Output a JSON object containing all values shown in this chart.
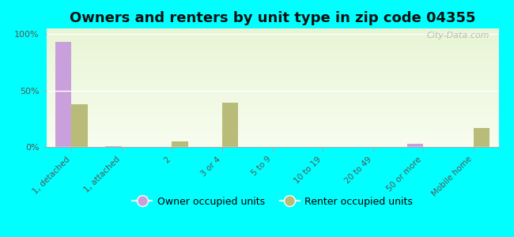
{
  "title": "Owners and renters by unit type in zip code 04355",
  "categories": [
    "1, detached",
    "1, attached",
    "2",
    "3 or 4",
    "5 to 9",
    "10 to 19",
    "20 to 49",
    "50 or more",
    "Mobile home"
  ],
  "owner_values": [
    93,
    1,
    0,
    0,
    0,
    0,
    0,
    3,
    0
  ],
  "renter_values": [
    38,
    0,
    5,
    39,
    0,
    0,
    0,
    0,
    17
  ],
  "owner_color": "#c9a0dc",
  "renter_color": "#b8bc78",
  "background_color": "#00ffff",
  "title_fontsize": 13,
  "ylabel_ticks": [
    "0%",
    "50%",
    "100%"
  ],
  "ytick_values": [
    0,
    50,
    100
  ],
  "ylim": [
    0,
    105
  ],
  "watermark": "City-Data.com",
  "legend_owner": "Owner occupied units",
  "legend_renter": "Renter occupied units",
  "bar_width": 0.32
}
